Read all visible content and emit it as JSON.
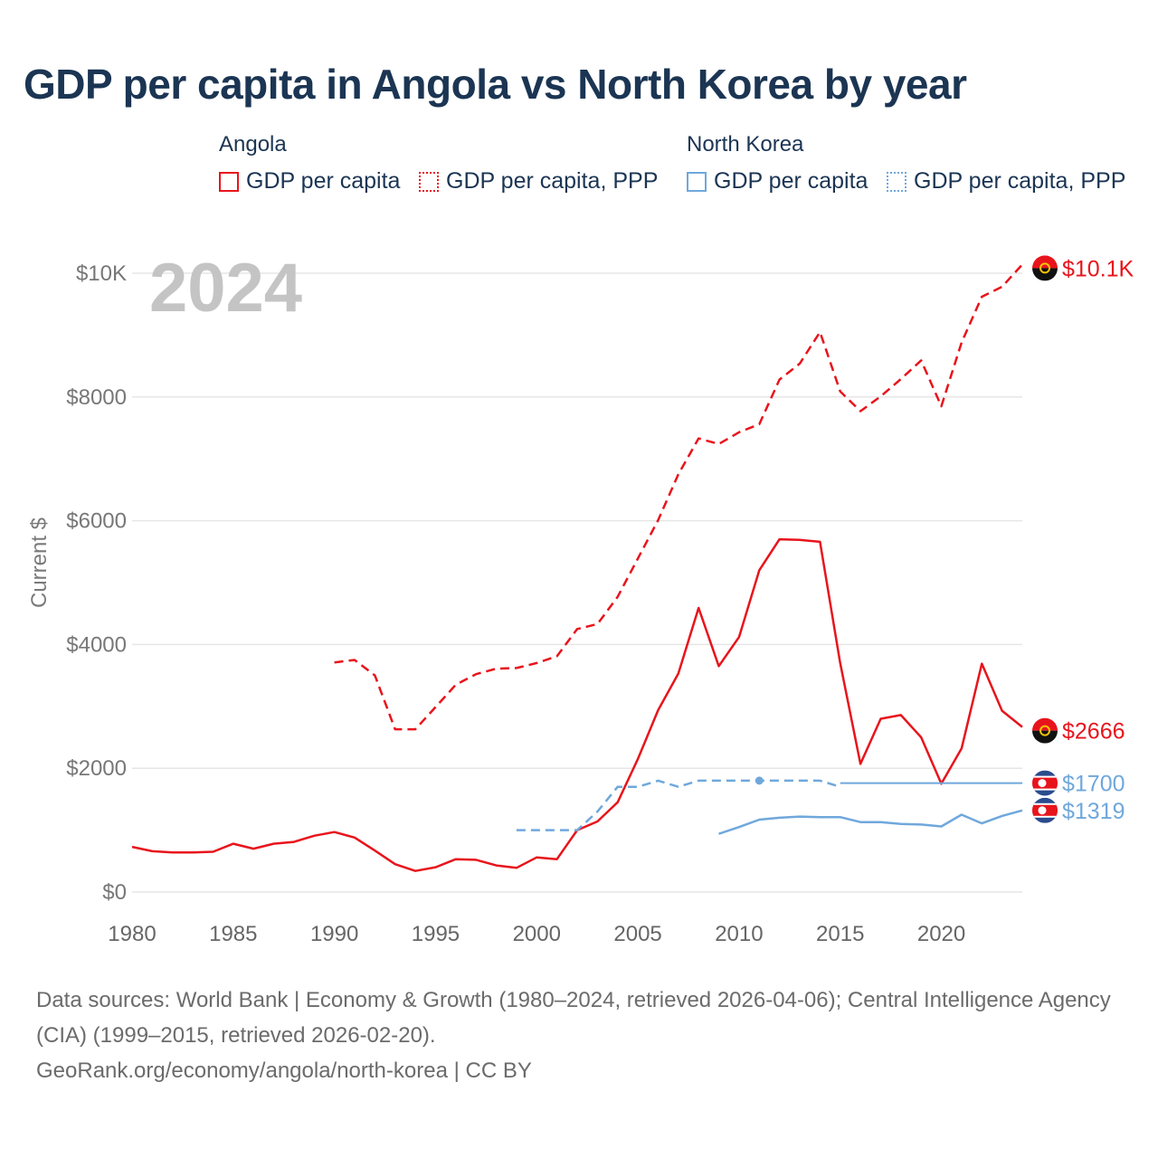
{
  "title": "GDP per capita in Angola vs North Korea by year",
  "legend": {
    "groups": [
      {
        "name": "Angola",
        "items": [
          {
            "label": "GDP per capita",
            "style": "solid"
          },
          {
            "label": "GDP per capita, PPP",
            "style": "dotted"
          }
        ],
        "color": "#e8141c"
      },
      {
        "name": "North Korea",
        "items": [
          {
            "label": "GDP per capita",
            "style": "solid"
          },
          {
            "label": "GDP per capita, PPP",
            "style": "dotted"
          }
        ],
        "color": "#6fa8dc"
      }
    ]
  },
  "year_watermark": "2024",
  "footer": {
    "source": "Data sources: World Bank | Economy & Growth (1980–2024, retrieved 2026-04-06); Central Intelligence Agency (CIA) (1999–2015, retrieved 2026-02-20).",
    "link": "GeoRank.org/economy/angola/north-korea | CC BY"
  },
  "chart_data": {
    "type": "line",
    "ylabel": "Current $",
    "xlabel": "",
    "xlim": [
      1980,
      2024
    ],
    "ylim": [
      0,
      10000
    ],
    "x_ticks": [
      1980,
      1985,
      1990,
      1995,
      2000,
      2005,
      2010,
      2015,
      2020
    ],
    "x_tick_labels": [
      "1980",
      "1985",
      "1990",
      "1995",
      "2000",
      "2005",
      "2010",
      "2015",
      "2020"
    ],
    "y_ticks": [
      0,
      2000,
      4000,
      6000,
      8000,
      10000
    ],
    "y_tick_labels": [
      "$0",
      "$2000",
      "$4000",
      "$6000",
      "$8000",
      "$10K"
    ],
    "grid": true,
    "series": [
      {
        "name": "Angola GDP per capita",
        "color": "#e8141c",
        "style": "solid",
        "end_label": "$2666",
        "x": [
          1980,
          1981,
          1982,
          1983,
          1984,
          1985,
          1986,
          1987,
          1988,
          1989,
          1990,
          1991,
          1992,
          1993,
          1994,
          1995,
          1996,
          1997,
          1998,
          1999,
          2000,
          2001,
          2002,
          2003,
          2004,
          2005,
          2006,
          2007,
          2008,
          2009,
          2010,
          2011,
          2012,
          2013,
          2014,
          2015,
          2016,
          2017,
          2018,
          2019,
          2020,
          2021,
          2022,
          2023,
          2024
        ],
        "y": [
          730,
          660,
          640,
          640,
          650,
          780,
          700,
          780,
          810,
          910,
          970,
          880,
          670,
          450,
          340,
          400,
          530,
          520,
          430,
          390,
          560,
          530,
          1000,
          1140,
          1450,
          2150,
          2940,
          3530,
          4590,
          3650,
          4120,
          5200,
          5700,
          5690,
          5660,
          3700,
          2070,
          2800,
          2860,
          2500,
          1750,
          2320,
          3690,
          2930,
          2666
        ]
      },
      {
        "name": "Angola GDP per capita, PPP",
        "color": "#e8141c",
        "style": "dashed",
        "end_label": "$10.1K",
        "x": [
          1990,
          1991,
          1992,
          1993,
          1994,
          1995,
          1996,
          1997,
          1998,
          1999,
          2000,
          2001,
          2002,
          2003,
          2004,
          2005,
          2006,
          2007,
          2008,
          2009,
          2010,
          2011,
          2012,
          2013,
          2014,
          2015,
          2016,
          2017,
          2018,
          2019,
          2020,
          2021,
          2022,
          2023,
          2024
        ],
        "y": [
          3710,
          3750,
          3500,
          2630,
          2630,
          2990,
          3350,
          3520,
          3610,
          3620,
          3700,
          3810,
          4250,
          4330,
          4770,
          5390,
          6010,
          6750,
          7330,
          7240,
          7430,
          7560,
          8280,
          8540,
          9050,
          8090,
          7770,
          8010,
          8290,
          8590,
          7850,
          8880,
          9620,
          9780,
          10140
        ]
      },
      {
        "name": "North Korea GDP per capita",
        "color": "#6fa8dc",
        "style": "solid",
        "end_label": "$1319",
        "x": [
          2009,
          2010,
          2011,
          2012,
          2013,
          2014,
          2015,
          2016,
          2017,
          2018,
          2019,
          2020,
          2021,
          2022,
          2023,
          2024
        ],
        "y": [
          940,
          1050,
          1170,
          1200,
          1220,
          1210,
          1210,
          1130,
          1130,
          1100,
          1090,
          1060,
          1250,
          1110,
          1230,
          1319
        ]
      },
      {
        "name": "North Korea GDP per capita, PPP",
        "color": "#6fa8dc",
        "style": "dashed",
        "end_label": "$1700",
        "x": [
          1999,
          2000,
          2001,
          2002,
          2003,
          2004,
          2005,
          2006,
          2007,
          2008,
          2009,
          2010,
          2011,
          2012,
          2013,
          2014,
          2015
        ],
        "y": [
          1000,
          1000,
          1000,
          1000,
          1300,
          1700,
          1700,
          1800,
          1700,
          1800,
          1800,
          1800,
          1800,
          1800,
          1800,
          1800,
          1700
        ]
      },
      {
        "name": "North Korea GDP per capita, PPP (extended)",
        "color": "#6fa8dc",
        "style": "solid-thin",
        "x": [
          2015,
          2024
        ],
        "y": [
          1760,
          1760
        ]
      }
    ]
  }
}
